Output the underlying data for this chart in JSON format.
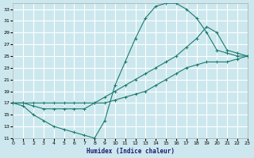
{
  "xlabel": "Humidex (Indice chaleur)",
  "bg_color": "#cce8ee",
  "grid_color": "#ffffff",
  "line_color": "#1a7a6e",
  "xlim": [
    0,
    23
  ],
  "ylim": [
    11,
    34
  ],
  "xticks": [
    0,
    1,
    2,
    3,
    4,
    5,
    6,
    7,
    8,
    9,
    10,
    11,
    12,
    13,
    14,
    15,
    16,
    17,
    18,
    19,
    20,
    21,
    22,
    23
  ],
  "yticks": [
    11,
    13,
    15,
    17,
    19,
    21,
    23,
    25,
    27,
    29,
    31,
    33
  ],
  "curve1_x": [
    0,
    1,
    2,
    3,
    4,
    5,
    6,
    7,
    8,
    9,
    10,
    11,
    12,
    13,
    14,
    15,
    16,
    17,
    18,
    19,
    20,
    21,
    22,
    23
  ],
  "curve1_y": [
    17,
    16.5,
    15,
    14,
    13,
    12.5,
    12,
    11.5,
    11,
    14,
    20,
    24,
    28,
    31.5,
    33.5,
    34,
    34,
    33,
    31.5,
    29,
    26,
    25.5,
    25,
    25
  ],
  "curve2_x": [
    0,
    1,
    2,
    3,
    4,
    5,
    6,
    7,
    8,
    9,
    10,
    11,
    12,
    13,
    14,
    15,
    16,
    17,
    18,
    19,
    20,
    21,
    22,
    23
  ],
  "curve2_y": [
    17,
    17,
    16.5,
    16,
    16,
    16,
    16,
    16,
    17,
    18,
    19,
    20,
    21,
    22,
    23,
    24,
    25,
    26.5,
    28,
    30,
    29,
    26,
    25.5,
    25
  ],
  "curve3_x": [
    0,
    1,
    2,
    3,
    4,
    5,
    6,
    7,
    8,
    9,
    10,
    11,
    12,
    13,
    14,
    15,
    16,
    17,
    18,
    19,
    20,
    21,
    22,
    23
  ],
  "curve3_y": [
    17,
    17,
    17,
    17,
    17,
    17,
    17,
    17,
    17,
    17,
    17.5,
    18,
    18.5,
    19,
    20,
    21,
    22,
    23,
    23.5,
    24,
    24,
    24,
    24.5,
    25
  ]
}
